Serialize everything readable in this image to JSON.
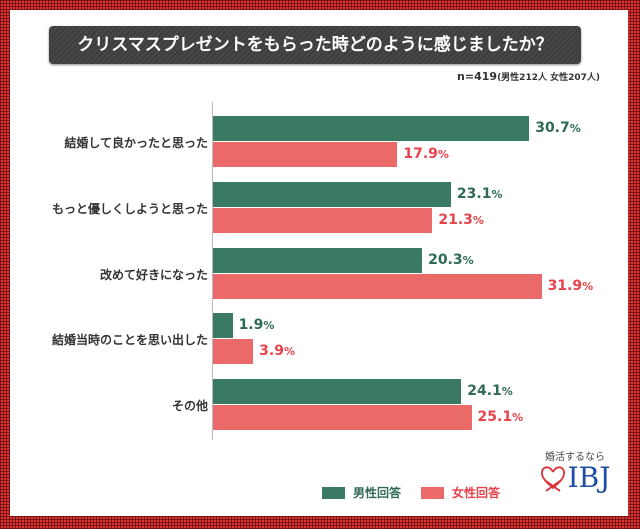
{
  "chart_data": {
    "type": "bar",
    "orientation": "horizontal",
    "title": "クリスマスプレゼントをもらった時どのように感じましたか？",
    "subtitle": "n=419",
    "subtitle_detail": "(男性212人 女性207人)",
    "categories": [
      "結婚して良かったと思った",
      "もっと優しくしようと思った",
      "改めて好きになった",
      "結婚当時のことを思い出した",
      "その他"
    ],
    "series": [
      {
        "name": "男性回答",
        "color": "#3a7a62",
        "label_color": "#2f6b53",
        "values": [
          30.7,
          23.1,
          20.3,
          1.9,
          24.1
        ]
      },
      {
        "name": "女性回答",
        "color": "#e96a69",
        "label_color": "#e8434a",
        "values": [
          17.9,
          21.3,
          31.9,
          3.9,
          25.1
        ]
      }
    ],
    "unit": "%",
    "xlim": [
      0,
      40
    ],
    "legend_position": "bottom"
  },
  "logo": {
    "tagline": "婚活するなら",
    "name": "IBJ"
  }
}
